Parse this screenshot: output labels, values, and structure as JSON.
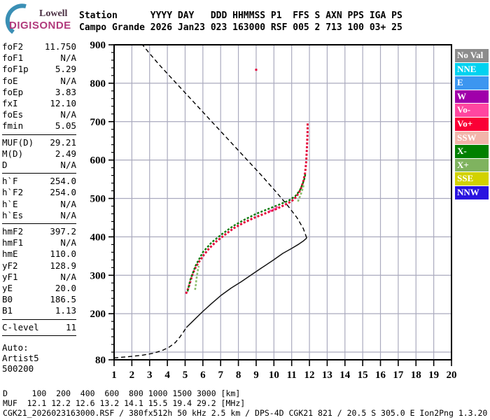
{
  "logo": {
    "top": "Lowell",
    "bottom": "DIGISONDE"
  },
  "header": {
    "line1": "Station      YYYY DAY   DDD HHMMSS P1  FFS S AXN PPS IGA PS",
    "line2": "Campo Grande 2026 Jan23 023 163000 RSF 005 2 713 100 03+ 25"
  },
  "params_groups": [
    [
      {
        "label": "foF2",
        "value": "11.750"
      },
      {
        "label": "foF1",
        "value": "N/A"
      },
      {
        "label": "foF1p",
        "value": "5.29"
      },
      {
        "label": "foE",
        "value": "N/A"
      },
      {
        "label": "foEp",
        "value": "3.83"
      },
      {
        "label": "fxI",
        "value": "12.10"
      },
      {
        "label": "foEs",
        "value": "N/A"
      },
      {
        "label": "fmin",
        "value": "5.05"
      }
    ],
    [
      {
        "label": "MUF(D)",
        "value": "29.21"
      },
      {
        "label": "M(D)",
        "value": "2.49"
      },
      {
        "label": "D",
        "value": "N/A"
      }
    ],
    [
      {
        "label": "h`F",
        "value": "254.0"
      },
      {
        "label": "h`F2",
        "value": "254.0"
      },
      {
        "label": "h`E",
        "value": "N/A"
      },
      {
        "label": "h`Es",
        "value": "N/A"
      }
    ],
    [
      {
        "label": "hmF2",
        "value": "397.2"
      },
      {
        "label": "hmF1",
        "value": "N/A"
      },
      {
        "label": "hmE",
        "value": "110.0"
      },
      {
        "label": "yF2",
        "value": "128.9"
      },
      {
        "label": "yF1",
        "value": "N/A"
      },
      {
        "label": "yE",
        "value": "20.0"
      },
      {
        "label": "B0",
        "value": "186.5"
      },
      {
        "label": "B1",
        "value": "1.13"
      }
    ],
    [
      {
        "label": "C-level",
        "value": "11"
      }
    ]
  ],
  "footer_ids": [
    "Auto:",
    "Artist5",
    "500200"
  ],
  "legend": [
    {
      "label": "No Val",
      "color": "#8c8c8c"
    },
    {
      "label": "NNE",
      "color": "#00d2f0"
    },
    {
      "label": "E",
      "color": "#3c96f0"
    },
    {
      "label": "W",
      "color": "#a000aa"
    },
    {
      "label": "Vo-",
      "color": "#ff46a0"
    },
    {
      "label": "Vo+",
      "color": "#fa0036"
    },
    {
      "label": "SSW",
      "color": "#f2b4aa"
    },
    {
      "label": "X-",
      "color": "#008000"
    },
    {
      "label": "X+",
      "color": "#7fb35f"
    },
    {
      "label": "SSE",
      "color": "#d2d200"
    },
    {
      "label": "NNW",
      "color": "#2a14e0"
    }
  ],
  "bottom": {
    "line1": "D     100  200  400  600  800 1000 1500 3000 [km]",
    "line2": "MUF  12.1 12.2 12.6 13.2 14.1 15.5 19.4 29.2 [MHz]",
    "line3": "CGK21_2026023163000.RSF / 380fx512h 50 kHz 2.5 km / DPS-4D CGK21 821 / 20.5 S 305.0 E Ion2Png 1.3.20"
  },
  "muf_table": {
    "distances_km": [
      100,
      200,
      400,
      600,
      800,
      1000,
      1500,
      3000
    ],
    "muf_mhz": [
      12.1,
      12.2,
      12.6,
      13.2,
      14.1,
      15.5,
      19.4,
      29.2
    ]
  },
  "chart_data": {
    "type": "line",
    "title": "",
    "xlabel": "frequency [MHz]",
    "ylabel": "height [km]",
    "xlim": [
      1,
      20
    ],
    "ylim": [
      80,
      900
    ],
    "grid": true,
    "grid_color": "#aaaabe",
    "x_ticks": [
      1,
      2,
      3,
      4,
      5,
      6,
      7,
      8,
      9,
      10,
      11,
      12,
      13,
      14,
      15,
      16,
      17,
      18,
      19,
      20
    ],
    "y_major_gridlines": [
      100,
      200,
      300,
      400,
      500,
      600,
      700,
      800
    ],
    "y_labels": [
      900,
      800,
      700,
      600,
      500,
      400,
      300,
      200,
      80
    ],
    "y_minor_step": 20,
    "series": [
      {
        "name": "profile-bottomside-model",
        "style": "dashed",
        "color": "#000000",
        "width": 1.4,
        "points": [
          [
            1.0,
            85
          ],
          [
            1.5,
            87
          ],
          [
            2.0,
            89
          ],
          [
            2.6,
            92
          ],
          [
            3.2,
            97
          ],
          [
            3.7,
            104
          ],
          [
            4.1,
            113
          ],
          [
            4.45,
            125
          ],
          [
            4.7,
            139
          ],
          [
            4.9,
            152
          ],
          [
            5.07,
            164
          ]
        ]
      },
      {
        "name": "profile-measured",
        "style": "solid",
        "color": "#141414",
        "width": 1.5,
        "points": [
          [
            5.07,
            164
          ],
          [
            5.4,
            179
          ],
          [
            5.95,
            204
          ],
          [
            6.45,
            225
          ],
          [
            7.0,
            247
          ],
          [
            7.6,
            267
          ],
          [
            8.15,
            283
          ],
          [
            8.75,
            302
          ],
          [
            9.3,
            319
          ],
          [
            9.95,
            339
          ],
          [
            10.5,
            357
          ],
          [
            11.0,
            370
          ],
          [
            11.4,
            381
          ],
          [
            11.65,
            389
          ],
          [
            11.85,
            397
          ]
        ]
      },
      {
        "name": "profile-topside-model",
        "style": "dashed",
        "color": "#000000",
        "width": 1.4,
        "points": [
          [
            11.85,
            397
          ],
          [
            11.65,
            422
          ],
          [
            11.3,
            450
          ],
          [
            10.75,
            483
          ],
          [
            10.1,
            518
          ],
          [
            9.3,
            560
          ],
          [
            8.4,
            605
          ],
          [
            7.5,
            650
          ],
          [
            6.5,
            700
          ],
          [
            5.5,
            750
          ],
          [
            4.5,
            800
          ],
          [
            3.6,
            845
          ],
          [
            2.95,
            880
          ],
          [
            2.6,
            900
          ]
        ]
      },
      {
        "name": "o-mode-trace",
        "style": "dotted",
        "color": "#e4043a",
        "width": 3,
        "points": [
          [
            5.05,
            252
          ],
          [
            5.18,
            266
          ],
          [
            5.28,
            282
          ],
          [
            5.4,
            300
          ],
          [
            5.55,
            317
          ],
          [
            5.75,
            333
          ],
          [
            6.05,
            353
          ],
          [
            6.35,
            370
          ],
          [
            6.75,
            388
          ],
          [
            7.25,
            406
          ],
          [
            7.75,
            423
          ],
          [
            8.3,
            437
          ],
          [
            8.9,
            450
          ],
          [
            9.5,
            461
          ],
          [
            10.1,
            472
          ],
          [
            10.6,
            483
          ],
          [
            11.0,
            493
          ],
          [
            11.27,
            505
          ],
          [
            11.5,
            523
          ],
          [
            11.66,
            545
          ],
          [
            11.76,
            568
          ],
          [
            11.82,
            597
          ],
          [
            11.86,
            634
          ],
          [
            11.89,
            666
          ],
          [
            11.9,
            697
          ]
        ]
      },
      {
        "name": "x-mode-trace",
        "style": "dotted",
        "color": "#007800",
        "width": 2.4,
        "points": [
          [
            5.14,
            258
          ],
          [
            5.3,
            290
          ],
          [
            5.6,
            326
          ],
          [
            6.0,
            360
          ],
          [
            6.5,
            386
          ],
          [
            7.1,
            408
          ],
          [
            7.7,
            428
          ],
          [
            8.35,
            445
          ],
          [
            9.0,
            460
          ],
          [
            9.7,
            473
          ],
          [
            10.3,
            484
          ],
          [
            10.85,
            495
          ],
          [
            11.2,
            506
          ],
          [
            11.45,
            520
          ],
          [
            11.62,
            538
          ],
          [
            11.73,
            553
          ],
          [
            11.78,
            566
          ]
        ]
      },
      {
        "name": "x-plus-scatter-low",
        "style": "dotted",
        "color": "#8cbe6e",
        "width": 2.6,
        "points": [
          [
            5.56,
            262
          ],
          [
            5.6,
            275
          ],
          [
            5.63,
            288
          ],
          [
            5.67,
            301
          ],
          [
            5.72,
            314
          ],
          [
            5.77,
            324
          ]
        ]
      },
      {
        "name": "x-plus-scatter-high",
        "style": "dotted",
        "color": "#8cbe6e",
        "width": 2.6,
        "points": [
          [
            11.35,
            492
          ],
          [
            11.55,
            515
          ],
          [
            11.68,
            535
          ]
        ]
      },
      {
        "name": "vo-minus-dots",
        "style": "dots",
        "color": "#ff46a0",
        "width": 3,
        "points": [
          [
            9.8,
            468
          ],
          [
            10.0,
            472
          ],
          [
            10.15,
            477
          ]
        ]
      },
      {
        "name": "stray-echo-dot",
        "style": "dots",
        "color": "#e4043a",
        "width": 3,
        "points": [
          [
            9.0,
            835
          ]
        ]
      }
    ]
  }
}
